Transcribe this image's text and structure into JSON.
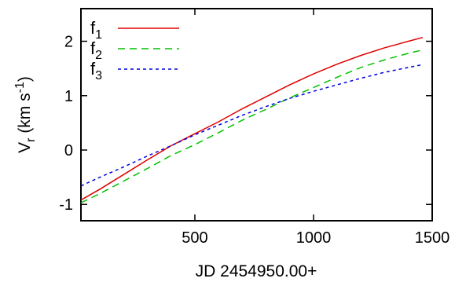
{
  "chart_data": {
    "type": "line",
    "title": "",
    "xlabel": "JD 2454950.00+",
    "ylabel": {
      "main": "V",
      "sub": "r",
      "unit_open": " (km s",
      "unit_sup": "-1",
      "unit_close": ")"
    },
    "xlim": [
      20,
      1500
    ],
    "ylim": [
      -1.3,
      2.6
    ],
    "xticks": [
      500,
      1000,
      1500
    ],
    "yticks": [
      -1,
      0,
      1,
      2
    ],
    "grid": false,
    "legend_position": "top-left",
    "series": [
      {
        "name": "f",
        "name_sub": "1",
        "color": "#e00000",
        "dash": "solid",
        "x": [
          20,
          100,
          200,
          300,
          400,
          500,
          600,
          700,
          800,
          900,
          1000,
          1100,
          1200,
          1300,
          1400,
          1460
        ],
        "y": [
          -0.92,
          -0.72,
          -0.45,
          -0.18,
          0.08,
          0.3,
          0.52,
          0.76,
          0.98,
          1.2,
          1.4,
          1.58,
          1.74,
          1.88,
          2.0,
          2.07
        ]
      },
      {
        "name": "f",
        "name_sub": "2",
        "color": "#00c000",
        "dash": "9,6",
        "x": [
          20,
          100,
          200,
          300,
          400,
          500,
          600,
          700,
          800,
          900,
          1000,
          1100,
          1200,
          1300,
          1400,
          1460
        ],
        "y": [
          -0.97,
          -0.8,
          -0.57,
          -0.34,
          -0.1,
          0.1,
          0.32,
          0.55,
          0.75,
          0.96,
          1.15,
          1.34,
          1.52,
          1.66,
          1.78,
          1.84
        ]
      },
      {
        "name": "f",
        "name_sub": "3",
        "color": "#0000e0",
        "dash": "4,4",
        "x": [
          20,
          100,
          200,
          300,
          400,
          500,
          600,
          700,
          800,
          900,
          1000,
          1100,
          1200,
          1300,
          1400,
          1460
        ],
        "y": [
          -0.66,
          -0.5,
          -0.31,
          -0.11,
          0.08,
          0.28,
          0.46,
          0.64,
          0.8,
          0.95,
          1.08,
          1.2,
          1.32,
          1.43,
          1.52,
          1.57
        ]
      }
    ]
  }
}
